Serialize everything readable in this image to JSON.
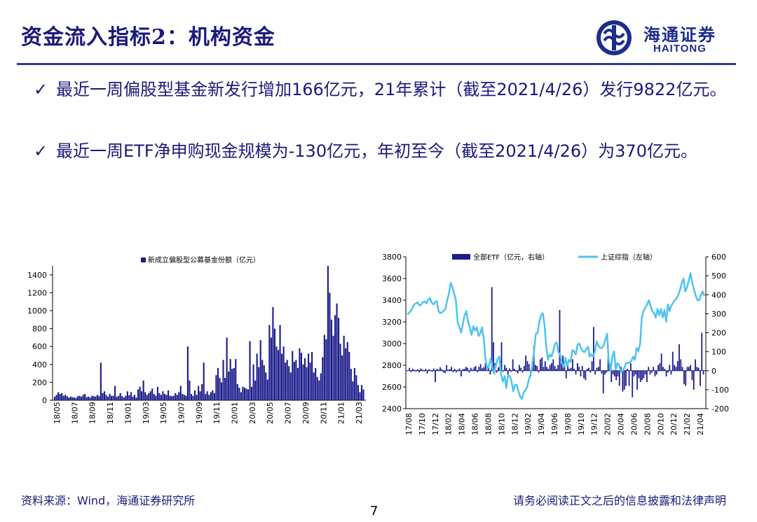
{
  "header": {
    "title": "资金流入指标2：机构资金",
    "logo_cn": "海通证券",
    "logo_en": "HAITONG"
  },
  "bullets": [
    {
      "check": "✓",
      "text": "最近一周偏股型基金新发行增加166亿元，21年累计（截至2021/4/26）发行9822亿元。"
    },
    {
      "check": "✓",
      "text": "最近一周ETF净申购现金规模为-130亿元，年初至今（截至2021/4/26）为370亿元。"
    }
  ],
  "footer": {
    "source": "资料来源：Wind，海通证券研究所",
    "disclaimer": "请务必阅读正文之后的信息披露和法律声明",
    "page": "7"
  },
  "chart_data": [
    {
      "type": "bar",
      "legend": "新成立偏股型公募基金份额（亿元）",
      "legend_placement": "top",
      "x_ticks": [
        "18/05",
        "18/07",
        "18/09",
        "18/11",
        "19/01",
        "19/03",
        "19/05",
        "19/07",
        "19/09",
        "19/11",
        "20/01",
        "20/03",
        "20/05",
        "20/07",
        "20/09",
        "20/11",
        "21/01",
        "21/03"
      ],
      "ylim": [
        0,
        1500
      ],
      "y_ticks": [
        0,
        200,
        400,
        600,
        800,
        1000,
        1200,
        1400
      ],
      "color": "#1c1c8c",
      "values": [
        40,
        60,
        90,
        70,
        80,
        50,
        60,
        45,
        30,
        40,
        35,
        30,
        25,
        45,
        50,
        40,
        60,
        70,
        35,
        40,
        30,
        50,
        45,
        40,
        60,
        45,
        420,
        80,
        100,
        60,
        40,
        70,
        50,
        50,
        160,
        40,
        50,
        80,
        45,
        30,
        50,
        100,
        55,
        90,
        40,
        60,
        30,
        120,
        150,
        100,
        220,
        90,
        60,
        80,
        100,
        130,
        70,
        50,
        150,
        80,
        60,
        100,
        70,
        60,
        110,
        50,
        45,
        50,
        80,
        60,
        90,
        160,
        70,
        60,
        50,
        600,
        220,
        70,
        50,
        110,
        60,
        160,
        100,
        180,
        420,
        70,
        100,
        60,
        90,
        110,
        80,
        280,
        360,
        250,
        200,
        450,
        250,
        700,
        320,
        460,
        350,
        360,
        460,
        180,
        140,
        90,
        150,
        140,
        130,
        120,
        660,
        150,
        400,
        220,
        520,
        370,
        670,
        450,
        390,
        310,
        230,
        840,
        700,
        1040,
        800,
        600,
        560,
        840,
        520,
        600,
        420,
        450,
        380,
        310,
        550,
        430,
        450,
        360,
        580,
        530,
        400,
        470,
        370,
        520,
        420,
        540,
        310,
        360,
        260,
        220,
        300,
        480,
        730,
        680,
        1500,
        1200,
        900,
        720,
        950,
        1080,
        920,
        630,
        500,
        720,
        580,
        650,
        540,
        350,
        210,
        360,
        280,
        170,
        90,
        170,
        120
      ]
    },
    {
      "type": "bar+line",
      "legend": [
        "全部ETF（亿元，右轴）",
        "上证综指（左轴）"
      ],
      "legend_placement": "top",
      "x_ticks": [
        "17/08",
        "17/10",
        "17/12",
        "18/02",
        "18/04",
        "18/06",
        "18/08",
        "18/10",
        "18/12",
        "19/02",
        "19/04",
        "19/06",
        "19/08",
        "19/10",
        "19/12",
        "20/02",
        "20/04",
        "20/06",
        "20/08",
        "20/10",
        "20/12",
        "21/02",
        "21/04"
      ],
      "left_axis": {
        "ylim": [
          2400,
          3800
        ],
        "ticks": [
          2400,
          2600,
          2800,
          3000,
          3200,
          3400,
          3600,
          3800
        ]
      },
      "right_axis": {
        "ylim": [
          -200,
          600
        ],
        "ticks": [
          -200,
          -100,
          0,
          100,
          200,
          300,
          400,
          500,
          600
        ]
      },
      "bar_color": "#1c1c8c",
      "line_color": "#4dc3f0",
      "series": [
        {
          "name": "上证综指（左轴）",
          "axis": "left",
          "values": [
            3270,
            3280,
            3300,
            3330,
            3360,
            3370,
            3380,
            3350,
            3360,
            3380,
            3390,
            3370,
            3400,
            3420,
            3380,
            3360,
            3380,
            3390,
            3300,
            3280,
            3290,
            3300,
            3320,
            3400,
            3460,
            3560,
            3520,
            3460,
            3400,
            3200,
            3150,
            3100,
            3180,
            3260,
            3300,
            3200,
            3150,
            3080,
            3160,
            3120,
            3150,
            3070,
            3090,
            3150,
            3050,
            2860,
            2760,
            2800,
            2860,
            2780,
            2720,
            2800,
            2860,
            2880,
            2720,
            2650,
            2700,
            2590,
            2710,
            2700,
            2650,
            2560,
            2620,
            2620,
            2560,
            2510,
            2490,
            2550,
            2570,
            2600,
            2670,
            2720,
            2800,
            2940,
            3090,
            3100,
            3200,
            3260,
            3280,
            3170,
            2970,
            2850,
            2900,
            2880,
            2930,
            3000,
            3010,
            2920,
            2900,
            2820,
            2780,
            2870,
            2790,
            2850,
            2830,
            2940,
            2930,
            2900,
            2990,
            3000,
            2960,
            2930,
            2920,
            2950,
            2970,
            2880,
            2900,
            2880,
            2930,
            3020,
            2980,
            2960,
            2960,
            2980,
            3040,
            3090,
            2830,
            2750,
            2880,
            2930,
            2760,
            2820,
            2800,
            2740,
            2750,
            2780,
            2820,
            2820,
            2830,
            2840,
            2880,
            2850,
            2960,
            2930,
            3000,
            3240,
            3300,
            3330,
            3360,
            3400,
            3350,
            3300,
            3280,
            3240,
            3320,
            3260,
            3320,
            3240,
            3310,
            3200,
            3360,
            3300,
            3350,
            3380,
            3400,
            3420,
            3450,
            3500,
            3560,
            3600,
            3480,
            3520,
            3580,
            3650,
            3560,
            3500,
            3440,
            3400,
            3400,
            3450,
            3480,
            3440
          ]
        },
        {
          "name": "全部ETF（亿元，右轴）",
          "axis": "right",
          "values": [
            0,
            15,
            -8,
            10,
            5,
            -5,
            8,
            -10,
            12,
            6,
            -4,
            10,
            -15,
            8,
            4,
            -6,
            12,
            -60,
            10,
            5,
            18,
            8,
            -10,
            -12,
            30,
            5,
            8,
            20,
            -8,
            10,
            -8,
            5,
            12,
            -30,
            8,
            10,
            20,
            15,
            -10,
            15,
            5,
            18,
            25,
            -8,
            20,
            35,
            12,
            18,
            40,
            20,
            15,
            -20,
            440,
            150,
            40,
            -10,
            18,
            60,
            150,
            -5,
            30,
            15,
            -25,
            12,
            -6,
            60,
            10,
            -5,
            -15,
            30,
            15,
            -10,
            25,
            80,
            50,
            35,
            -30,
            45,
            130,
            30,
            25,
            -10,
            60,
            70,
            20,
            50,
            20,
            10,
            30,
            40,
            60,
            25,
            10,
            30,
            320,
            40,
            80,
            25,
            -40,
            30,
            10,
            15,
            60,
            10,
            -20,
            40,
            20,
            -30,
            25,
            -40,
            -50,
            10,
            15,
            -10,
            50,
            230,
            -20,
            15,
            20,
            60,
            -15,
            -120,
            -20,
            -10,
            80,
            40,
            -60,
            -20,
            -30,
            -50,
            -30,
            -80,
            20,
            -110,
            -100,
            -80,
            10,
            -80,
            40,
            -140,
            -30,
            -20,
            -100,
            -40,
            -60,
            -50,
            -40,
            -20,
            -60,
            20,
            -20,
            -10,
            20,
            -30,
            -20,
            30,
            40,
            90,
            20,
            10,
            -30,
            -10,
            30,
            -20,
            100,
            30,
            20,
            50,
            140,
            60,
            20,
            -70,
            -80,
            20,
            20,
            30,
            -50,
            -100,
            60,
            20,
            15,
            -80,
            200,
            -20
          ]
        }
      ]
    }
  ]
}
